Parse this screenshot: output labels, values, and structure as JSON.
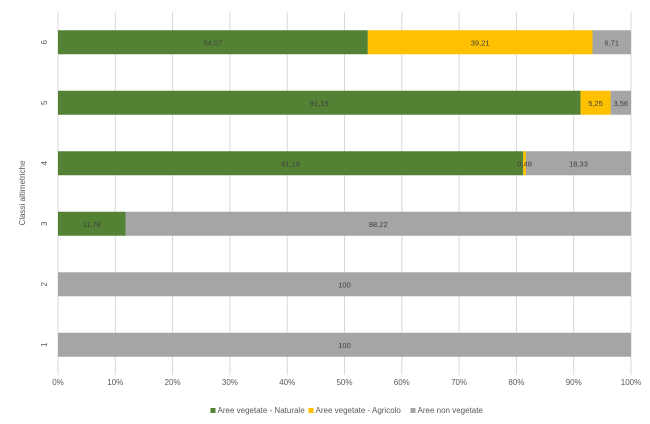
{
  "chart_data": {
    "type": "bar",
    "orientation": "horizontal",
    "stacked": true,
    "percent": true,
    "title": "",
    "xlabel": "",
    "ylabel": "Classi altimetriche",
    "xlim": [
      0,
      100
    ],
    "x_ticks": [
      "0%",
      "10%",
      "20%",
      "30%",
      "40%",
      "50%",
      "60%",
      "70%",
      "80%",
      "90%",
      "100%"
    ],
    "categories": [
      "6",
      "5",
      "4",
      "3",
      "2",
      "1"
    ],
    "series": [
      {
        "name": "Aree vegetate - Naturale",
        "color": "#548235",
        "values": [
          54.07,
          91.19,
          81.19,
          11.78,
          0,
          0
        ],
        "labels": [
          "54,07",
          "91,19",
          "81,19",
          "11,78",
          "",
          ""
        ]
      },
      {
        "name": "Aree vegetate - Agricolo",
        "color": "#FFC000",
        "values": [
          39.21,
          5.25,
          0.48,
          0,
          0,
          0
        ],
        "labels": [
          "39,21",
          "5,25",
          "0,48",
          "",
          "",
          ""
        ]
      },
      {
        "name": "Aree non vegetate",
        "color": "#A5A5A5",
        "values": [
          6.71,
          3.56,
          18.33,
          88.22,
          100,
          100
        ],
        "labels": [
          "6,71",
          "3,56",
          "18,33",
          "88,22",
          "100",
          "100"
        ]
      }
    ],
    "grid": true,
    "legend_position": "bottom"
  }
}
